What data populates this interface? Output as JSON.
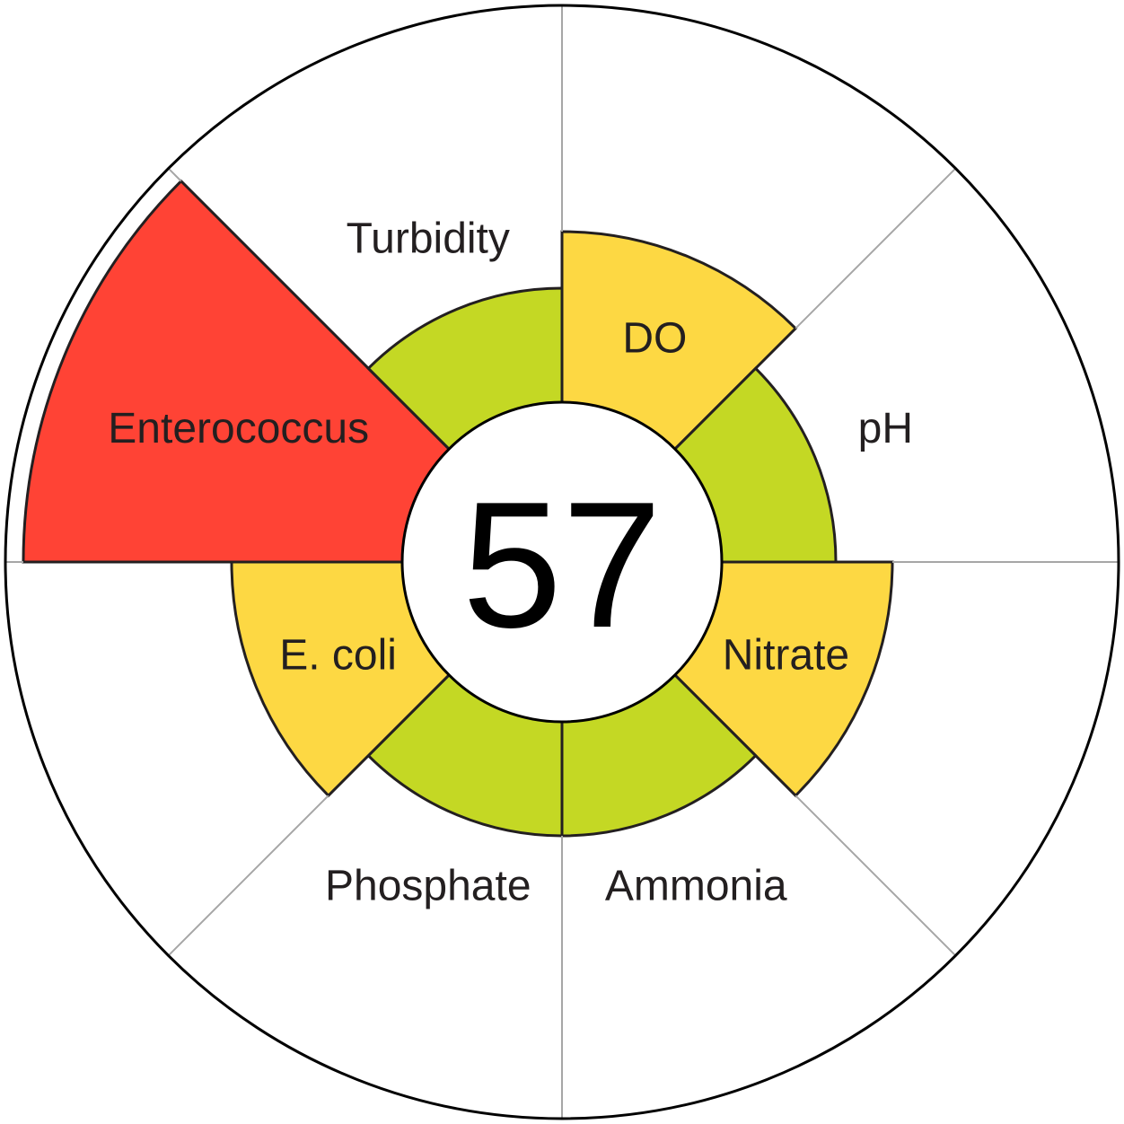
{
  "chart_data": {
    "type": "polar-area",
    "score": "57",
    "segments": [
      {
        "name": "DO",
        "rating": "fair",
        "color": "#fdd843"
      },
      {
        "name": "pH",
        "rating": "good",
        "color": "#c4d824"
      },
      {
        "name": "Nitrate",
        "rating": "fair",
        "color": "#fdd843"
      },
      {
        "name": "Ammonia",
        "rating": "good",
        "color": "#c4d824"
      },
      {
        "name": "Phosphate",
        "rating": "good",
        "color": "#c4d824"
      },
      {
        "name": "E. coli",
        "rating": "fair",
        "color": "#fdd843"
      },
      {
        "name": "Enterococcus",
        "rating": "poor",
        "color": "#ff4335"
      },
      {
        "name": "Turbidity",
        "rating": "good",
        "color": "#c4d824"
      }
    ]
  }
}
